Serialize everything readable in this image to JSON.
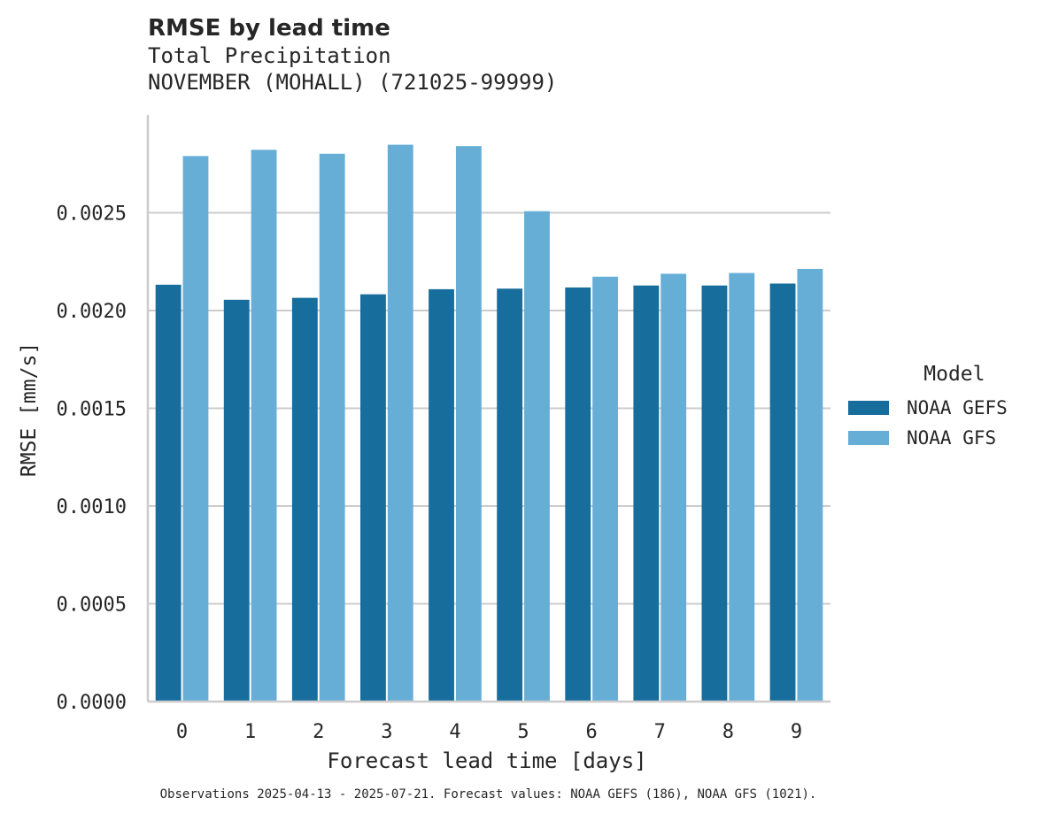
{
  "chart_data": {
    "type": "bar",
    "title": "RMSE by lead time",
    "subtitle_lines": [
      "Total Precipitation",
      "NOVEMBER (MOHALL) (721025-99999)"
    ],
    "xlabel": "Forecast lead time [days]",
    "ylabel": "RMSE [mm/s]",
    "categories": [
      "0",
      "1",
      "2",
      "3",
      "4",
      "5",
      "6",
      "7",
      "8",
      "9"
    ],
    "yticks": [
      "0.0000",
      "0.0005",
      "0.0010",
      "0.0015",
      "0.0020",
      "0.0025"
    ],
    "ylim": [
      0,
      0.003
    ],
    "grid": true,
    "legend": {
      "title": "Model",
      "placement": "right"
    },
    "series": [
      {
        "name": "NOAA GEFS",
        "color": "#176d9c",
        "values": [
          0.002132,
          0.002055,
          0.002065,
          0.002083,
          0.002109,
          0.002112,
          0.002118,
          0.002128,
          0.002128,
          0.002138
        ]
      },
      {
        "name": "NOAA GFS",
        "color": "#67aed7",
        "values": [
          0.00279,
          0.002822,
          0.002802,
          0.002848,
          0.002841,
          0.002508,
          0.002173,
          0.002188,
          0.002192,
          0.002213
        ]
      }
    ],
    "footer": "Observations 2025-04-13 - 2025-07-21. Forecast values: NOAA GEFS (186), NOAA GFS (1021)."
  }
}
